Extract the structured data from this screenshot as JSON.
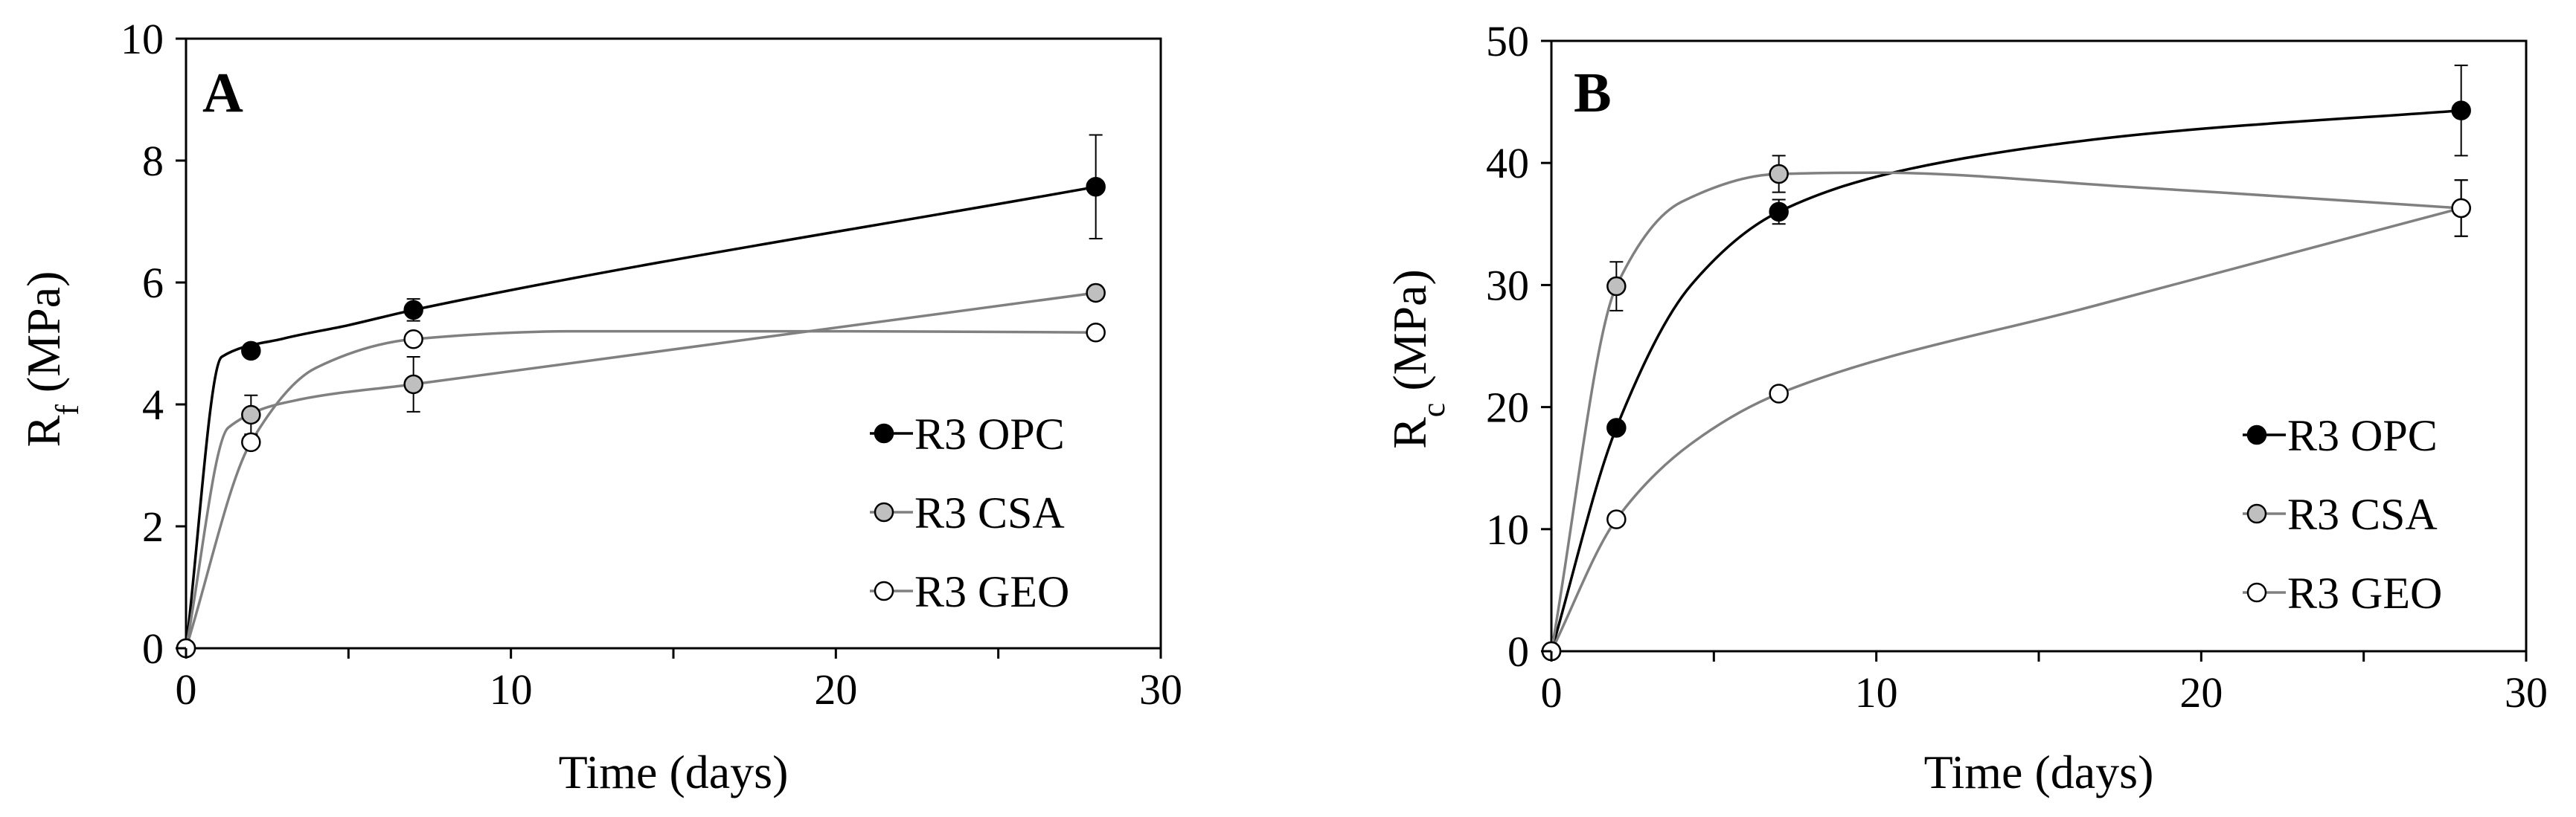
{
  "figure": {
    "background": "#ffffff"
  },
  "chart_data": [
    {
      "type": "line",
      "panel_label": "A",
      "title": "",
      "xlabel": "Time (days)",
      "ylabel": {
        "base": "R",
        "subscript": "f",
        "unit": " (MPa)"
      },
      "xlim": [
        0,
        30
      ],
      "ylim": [
        0,
        10
      ],
      "xticks": [
        0,
        10,
        20,
        30
      ],
      "xtick_labels": [
        "0",
        "10",
        "20",
        "30"
      ],
      "yticks": [
        0,
        2,
        4,
        6,
        8,
        10
      ],
      "ytick_labels": [
        "0",
        "2",
        "4",
        "6",
        "8",
        "10"
      ],
      "grid": false,
      "legend": "right",
      "series": [
        {
          "name": "R3 OPC",
          "marker": "filled-black",
          "marker_color": "#000000",
          "line_color": "#000000",
          "x": [
            0,
            2,
            7,
            28
          ],
          "y": [
            0,
            4.88,
            5.55,
            7.57
          ],
          "err": [
            0,
            0.08,
            0.18,
            0.85
          ],
          "curve_y": [
            0,
            4.78,
            5.08,
            5.3,
            5.55,
            7.57
          ],
          "curve_x": [
            0,
            1.1,
            3.0,
            5.0,
            7,
            28
          ]
        },
        {
          "name": "R3 CSA",
          "marker": "filled-grey",
          "marker_color": "#bfbfbf",
          "line_color": "#808080",
          "x": [
            0,
            2,
            7,
            28
          ],
          "y": [
            0,
            3.83,
            4.33,
            5.83
          ],
          "err": [
            0,
            0.32,
            0.45,
            0.08
          ],
          "curve_y": [
            0,
            3.62,
            4.08,
            4.33,
            5.83
          ],
          "curve_x": [
            0,
            1.3,
            3.5,
            7,
            28
          ]
        },
        {
          "name": "R3 GEO",
          "marker": "open",
          "marker_color": "#ffffff",
          "line_color": "#808080",
          "x": [
            0,
            2,
            7,
            28
          ],
          "y": [
            0,
            3.38,
            5.07,
            5.18
          ],
          "err": [
            0,
            0.05,
            0.05,
            0.05
          ],
          "curve_y": [
            0,
            3.38,
            4.6,
            5.07,
            5.2,
            5.2,
            5.18
          ],
          "curve_x": [
            0,
            2,
            4,
            7,
            12,
            20,
            28
          ]
        }
      ]
    },
    {
      "type": "line",
      "panel_label": "B",
      "title": "",
      "xlabel": "Time (days)",
      "ylabel": {
        "base": "R",
        "subscript": "c",
        "unit": " (MPa)"
      },
      "xlim": [
        0,
        30
      ],
      "ylim": [
        0,
        50
      ],
      "xticks": [
        0,
        10,
        20,
        30
      ],
      "xtick_labels": [
        "0",
        "10",
        "20",
        "30"
      ],
      "yticks": [
        0,
        10,
        20,
        30,
        40,
        50
      ],
      "ytick_labels": [
        "0",
        "10",
        "20",
        "30",
        "40",
        "50"
      ],
      "grid": false,
      "legend": "right",
      "series": [
        {
          "name": "R3 OPC",
          "marker": "filled-black",
          "marker_color": "#000000",
          "line_color": "#000000",
          "x": [
            0,
            2,
            7,
            28
          ],
          "y": [
            0,
            18.3,
            36.0,
            44.3
          ],
          "err": [
            0,
            0.3,
            1.0,
            3.7
          ],
          "curve_y": [
            0,
            18.3,
            30.0,
            36.0,
            39.5,
            42.3,
            44.3
          ],
          "curve_x": [
            0,
            2,
            4.3,
            7,
            11,
            18,
            28
          ]
        },
        {
          "name": "R3 CSA",
          "marker": "filled-grey",
          "marker_color": "#bfbfbf",
          "line_color": "#808080",
          "x": [
            0,
            2,
            7,
            28
          ],
          "y": [
            0,
            29.9,
            39.1,
            36.3
          ],
          "err": [
            0,
            2.0,
            1.5,
            2.3
          ],
          "curve_y": [
            0,
            29.9,
            36.8,
            39.1,
            39.2,
            38.0,
            36.3
          ],
          "curve_x": [
            0,
            2,
            4,
            7,
            10,
            18,
            28
          ]
        },
        {
          "name": "R3 GEO",
          "marker": "open",
          "marker_color": "#ffffff",
          "line_color": "#808080",
          "x": [
            0,
            2,
            7,
            28
          ],
          "y": [
            0,
            10.8,
            21.1,
            36.3
          ],
          "err": [
            0,
            0.2,
            0.3,
            2.3
          ],
          "curve_y": [
            0,
            10.8,
            17.0,
            21.1,
            28.5,
            36.3
          ],
          "curve_x": [
            0,
            2,
            4.3,
            7,
            17,
            28
          ]
        }
      ]
    }
  ]
}
